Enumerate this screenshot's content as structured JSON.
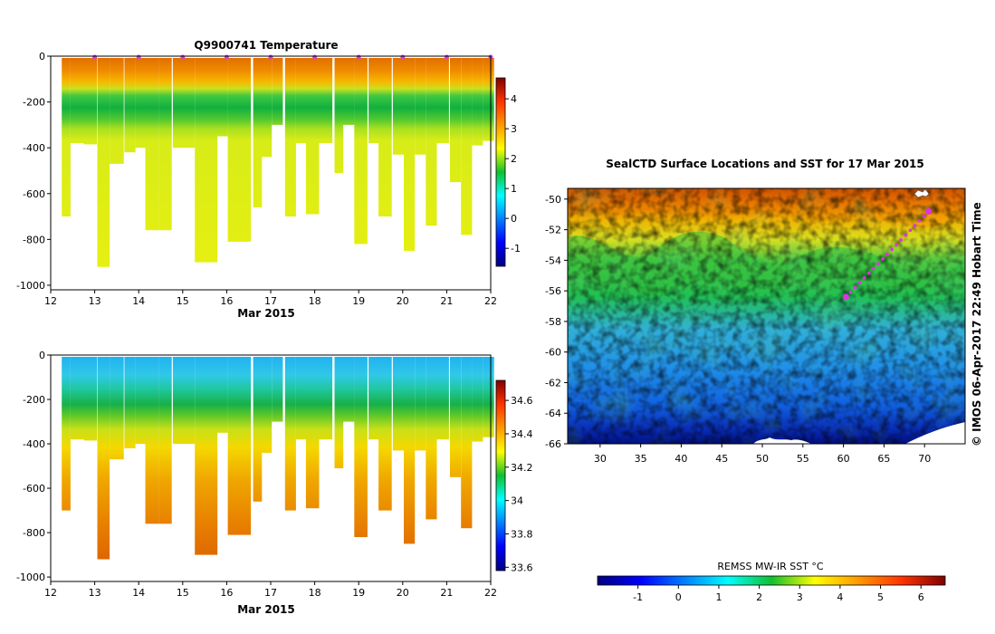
{
  "chart_data": [
    {
      "type": "heatmap",
      "id": "temperature-profile",
      "title": "Q9900741  Temperature",
      "xlabel": "Mar 2015",
      "xticks": [
        "12",
        "13",
        "14",
        "15",
        "16",
        "17",
        "18",
        "19",
        "20",
        "21",
        "22"
      ],
      "xlim": [
        12,
        22
      ],
      "yticks": [
        "0",
        "-200",
        "-400",
        "-600",
        "-800",
        "-1000"
      ],
      "ylim": [
        -1020,
        0
      ],
      "colorbar": {
        "ticks": [
          "-1",
          "0",
          "1",
          "2",
          "3",
          "4"
        ],
        "range": [
          -1.6,
          4.7
        ]
      },
      "surface_markers_day": [
        13,
        14,
        15,
        16,
        17,
        18,
        19,
        20,
        21,
        22
      ],
      "profiles": {
        "x": [
          12.35,
          12.6,
          12.9,
          13.2,
          13.5,
          13.8,
          14.05,
          14.3,
          14.6,
          14.9,
          15.15,
          15.4,
          15.65,
          15.9,
          16.15,
          16.4,
          16.7,
          16.9,
          17.15,
          17.45,
          17.7,
          17.95,
          18.25,
          18.55,
          18.75,
          19.05,
          19.35,
          19.6,
          19.9,
          20.15,
          20.4,
          20.65,
          20.9,
          21.2,
          21.45,
          21.7,
          21.95
        ],
        "w": [
          0.2,
          0.3,
          0.3,
          0.28,
          0.32,
          0.25,
          0.25,
          0.3,
          0.3,
          0.25,
          0.25,
          0.25,
          0.28,
          0.25,
          0.25,
          0.3,
          0.2,
          0.25,
          0.25,
          0.25,
          0.25,
          0.3,
          0.3,
          0.2,
          0.3,
          0.3,
          0.25,
          0.3,
          0.25,
          0.25,
          0.25,
          0.25,
          0.3,
          0.25,
          0.25,
          0.25,
          0.25
        ],
        "depth": [
          700,
          380,
          385,
          920,
          470,
          420,
          400,
          760,
          760,
          400,
          400,
          900,
          900,
          350,
          810,
          810,
          660,
          440,
          300,
          700,
          380,
          690,
          380,
          510,
          300,
          820,
          380,
          700,
          430,
          850,
          430,
          740,
          380,
          550,
          780,
          390,
          370
        ],
        "thermocline_depth": [
          165,
          185,
          200,
          210,
          230,
          215,
          200,
          200,
          195,
          185,
          175,
          175,
          185,
          180,
          195,
          205,
          200,
          190,
          175,
          175,
          185,
          195,
          200,
          205,
          200,
          205,
          210,
          200,
          190,
          180,
          175,
          175,
          165,
          155,
          160,
          165,
          170
        ]
      }
    },
    {
      "type": "heatmap",
      "id": "salinity-profile",
      "title": "",
      "xlabel": "Mar 2015",
      "xticks": [
        "12",
        "13",
        "14",
        "15",
        "16",
        "17",
        "18",
        "19",
        "20",
        "21",
        "22"
      ],
      "xlim": [
        12,
        22
      ],
      "yticks": [
        "0",
        "-200",
        "-400",
        "-600",
        "-800",
        "-1000"
      ],
      "ylim": [
        -1020,
        0
      ],
      "colorbar": {
        "ticks": [
          "33.6",
          "33.8",
          "34",
          "34.2",
          "34.4",
          "34.6"
        ],
        "range": [
          33.58,
          34.72
        ]
      }
    },
    {
      "type": "heatmap",
      "id": "sst-map",
      "title": "SealCTD Surface Locations and SST for 17 Mar 2015",
      "xticks": [
        "30",
        "35",
        "40",
        "45",
        "50",
        "55",
        "60",
        "65",
        "70"
      ],
      "xlim": [
        26,
        75
      ],
      "yticks": [
        "-50",
        "-52",
        "-54",
        "-56",
        "-58",
        "-60",
        "-62",
        "-64",
        "-66"
      ],
      "ylim": [
        -66,
        -49.3
      ],
      "colorbar": {
        "label": "REMSS MW-IR SST °C",
        "ticks": [
          "-1",
          "0",
          "1",
          "2",
          "3",
          "4",
          "5",
          "6"
        ],
        "range": [
          -2,
          6.6
        ]
      },
      "track": {
        "start": [
          60.3,
          -56.4
        ],
        "end": [
          70.5,
          -50.8
        ]
      }
    }
  ],
  "credit": "© IMOS 06-Apr-2017 22:49 Hobart Time"
}
